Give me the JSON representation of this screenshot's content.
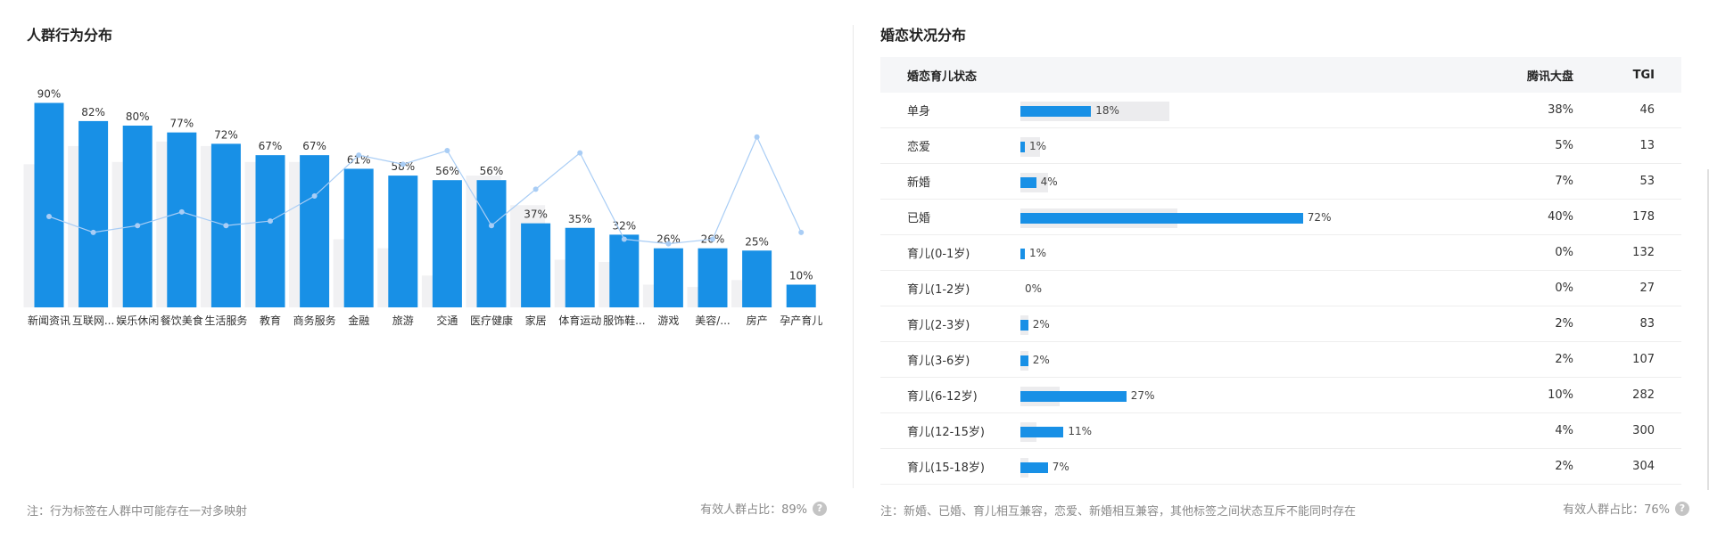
{
  "left_panel": {
    "title": "人群行为分布",
    "note": "注：行为标签在人群中可能存在一对多映射",
    "valid_ratio": "有效人群占比：89%"
  },
  "right_panel": {
    "title": "婚恋状况分布",
    "header": {
      "label": "婚恋育儿状态",
      "market": "腾讯大盘",
      "tgi": "TGI"
    },
    "rows": [
      {
        "label": "单身",
        "value": "18%",
        "pct": 18,
        "market": "38%",
        "market_pct": 38,
        "tgi": "46"
      },
      {
        "label": "恋爱",
        "value": "1%",
        "pct": 1,
        "market": "5%",
        "market_pct": 5,
        "tgi": "13"
      },
      {
        "label": "新婚",
        "value": "4%",
        "pct": 4,
        "market": "7%",
        "market_pct": 7,
        "tgi": "53"
      },
      {
        "label": "已婚",
        "value": "72%",
        "pct": 72,
        "market": "40%",
        "market_pct": 40,
        "tgi": "178"
      },
      {
        "label": "育儿(0-1岁)",
        "value": "1%",
        "pct": 1,
        "market": "0%",
        "market_pct": 0,
        "tgi": "132"
      },
      {
        "label": "育儿(1-2岁)",
        "value": "0%",
        "pct": 0,
        "market": "0%",
        "market_pct": 0,
        "tgi": "27"
      },
      {
        "label": "育儿(2-3岁)",
        "value": "2%",
        "pct": 2,
        "market": "2%",
        "market_pct": 2,
        "tgi": "83"
      },
      {
        "label": "育儿(3-6岁)",
        "value": "2%",
        "pct": 2,
        "market": "2%",
        "market_pct": 2,
        "tgi": "107"
      },
      {
        "label": "育儿(6-12岁)",
        "value": "27%",
        "pct": 27,
        "market": "10%",
        "market_pct": 10,
        "tgi": "282"
      },
      {
        "label": "育儿(12-15岁)",
        "value": "11%",
        "pct": 11,
        "market": "4%",
        "market_pct": 4,
        "tgi": "300"
      },
      {
        "label": "育儿(15-18岁)",
        "value": "7%",
        "pct": 7,
        "market": "2%",
        "market_pct": 2,
        "tgi": "304"
      }
    ],
    "note": "注：新婚、已婚、育儿相互兼容，恋爱、新婚相互兼容，其他标签之间状态互斥不能同时存在",
    "valid_ratio": "有效人群占比：76%"
  },
  "colors": {
    "bar": "#1890e6",
    "bar_bg": "#ececee",
    "line": "#a9cdf5",
    "text": "#333333"
  },
  "icons": {
    "help": "question-circle-icon"
  },
  "chart_data": {
    "type": "bar",
    "categories": [
      "新闻资讯",
      "互联网...",
      "娱乐休闲",
      "餐饮美食",
      "生活服务",
      "教育",
      "商务服务",
      "金融",
      "旅游",
      "交通",
      "医疗健康",
      "家居",
      "体育运动",
      "服饰鞋...",
      "游戏",
      "美容/...",
      "房产",
      "孕产育儿"
    ],
    "series": [
      {
        "values": [
          90,
          82,
          80,
          77,
          72,
          67,
          67,
          61,
          58,
          56,
          56,
          37,
          35,
          32,
          26,
          26,
          25,
          10
        ],
        "labels": [
          "90%",
          "82%",
          "80%",
          "77%",
          "72%",
          "67%",
          "67%",
          "61%",
          "58%",
          "56%",
          "56%",
          "37%",
          "35%",
          "32%",
          "26%",
          "26%",
          "25%",
          "10%"
        ]
      },
      {
        "values": [
          63,
          71,
          64,
          73,
          71,
          64,
          64,
          30,
          26,
          14,
          58,
          45,
          21,
          20,
          10,
          9,
          12,
          0
        ]
      },
      {
        "type": "line",
        "values": [
          40,
          33,
          36,
          42,
          36,
          38,
          49,
          67,
          63,
          69,
          36,
          52,
          68,
          30,
          28,
          30,
          75,
          33
        ]
      }
    ],
    "ylim": [
      0,
      100
    ]
  }
}
